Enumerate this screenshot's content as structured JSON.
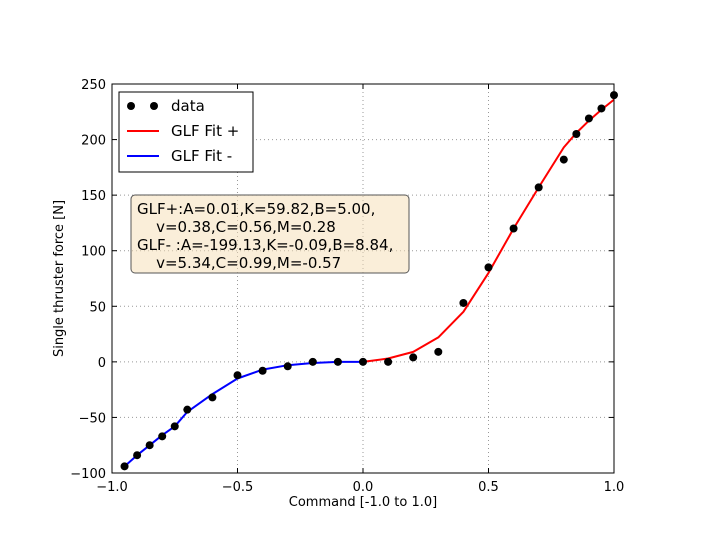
{
  "chart_data": {
    "type": "line",
    "title": "",
    "xlabel": "Command [-1.0 to 1.0]",
    "ylabel": "Single thruster force [N]",
    "xlim": [
      -1.0,
      1.0
    ],
    "ylim": [
      -100,
      250
    ],
    "xticks": [
      -1.0,
      -0.5,
      0.0,
      0.5,
      1.0
    ],
    "xtick_labels": [
      "−1.0",
      "−0.5",
      "0.0",
      "0.5",
      "1.0"
    ],
    "yticks": [
      -100,
      -50,
      0,
      50,
      100,
      150,
      200,
      250
    ],
    "ytick_labels": [
      "−100",
      "−50",
      "0",
      "50",
      "100",
      "150",
      "200",
      "250"
    ],
    "grid": true,
    "legend_position": "top-left",
    "series": [
      {
        "name": "data",
        "kind": "scatter",
        "color": "#000000",
        "x": [
          -0.95,
          -0.9,
          -0.85,
          -0.8,
          -0.75,
          -0.7,
          -0.6,
          -0.5,
          -0.4,
          -0.3,
          -0.2,
          -0.1,
          0.0,
          0.1,
          0.2,
          0.3,
          0.4,
          0.5,
          0.6,
          0.7,
          0.8,
          0.85,
          0.9,
          0.95,
          1.0
        ],
        "y": [
          -94,
          -84,
          -75,
          -67,
          -58,
          -43,
          -32,
          -12,
          -8,
          -4,
          0,
          0,
          0,
          0,
          4,
          9,
          53,
          85,
          120,
          157,
          182,
          205,
          219,
          228,
          240
        ]
      },
      {
        "name": "GLF Fit +",
        "kind": "line",
        "color": "#ff0000",
        "x": [
          0.0,
          0.1,
          0.2,
          0.3,
          0.4,
          0.5,
          0.6,
          0.7,
          0.8,
          0.85,
          0.9,
          0.95,
          1.0
        ],
        "y": [
          0,
          3,
          9,
          22,
          45,
          80,
          120,
          157,
          193,
          206,
          217,
          227,
          236
        ]
      },
      {
        "name": "GLF Fit -",
        "kind": "line",
        "color": "#0000ff",
        "x": [
          -0.95,
          -0.9,
          -0.85,
          -0.8,
          -0.75,
          -0.7,
          -0.6,
          -0.5,
          -0.4,
          -0.3,
          -0.2,
          -0.1,
          0.0
        ],
        "y": [
          -94,
          -84,
          -75,
          -66,
          -58,
          -45,
          -29,
          -15,
          -7,
          -3,
          -1,
          0,
          0
        ]
      }
    ],
    "annotation": {
      "lines": [
        "GLF+:A=0.01,K=59.82,B=5.00,",
        "    v=0.38,C=0.56,M=0.28",
        "GLF- :A=-199.13,K=-0.09,B=8.84,",
        "    v=5.34,C=0.99,M=-0.57"
      ],
      "background": "#f5deb3"
    }
  }
}
